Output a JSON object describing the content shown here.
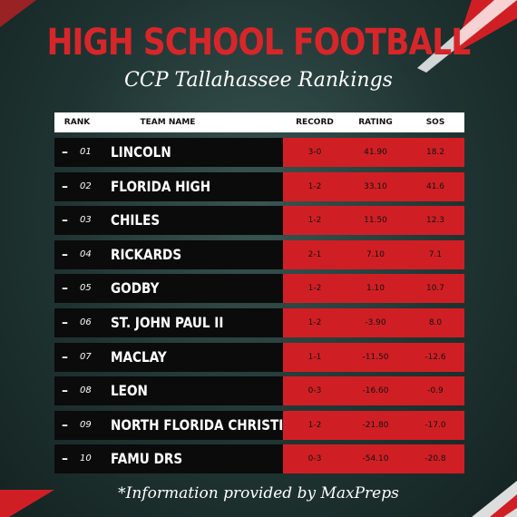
{
  "header": {
    "title": "HIGH SCHOOL FOOTBALL",
    "subtitle": "CCP Tallahassee Rankings"
  },
  "table": {
    "columns": [
      "RANK",
      "TEAM NAME",
      "RECORD",
      "RATING",
      "SOS"
    ],
    "rows": [
      [
        "–",
        "01",
        "LINCOLN",
        "3-0",
        "41.90",
        "18.2"
      ],
      [
        "–",
        "02",
        "FLORIDA HIGH",
        "1-2",
        "33.10",
        "41.6"
      ],
      [
        "–",
        "03",
        "CHILES",
        "1-2",
        "11.50",
        "12.3"
      ],
      [
        "–",
        "04",
        "RICKARDS",
        "2-1",
        "7.10",
        "7.1"
      ],
      [
        "–",
        "05",
        "GODBY",
        "1-2",
        "1.10",
        "10.7"
      ],
      [
        "–",
        "06",
        "ST. JOHN PAUL II",
        "1-2",
        "-3.90",
        "8.0"
      ],
      [
        "–",
        "07",
        "MACLAY",
        "1-1",
        "-11.50",
        "-12.6"
      ],
      [
        "–",
        "08",
        "LEON",
        "0-3",
        "-16.60",
        "-0.9"
      ],
      [
        "–",
        "09",
        "NORTH FLORIDA CHRISTIAN",
        "1-2",
        "-21.80",
        "-17.0"
      ],
      [
        "–",
        "10",
        "FAMU DRS",
        "0-3",
        "-54.10",
        "-20.8"
      ]
    ]
  },
  "footer": "*Information provided by MaxPreps"
}
